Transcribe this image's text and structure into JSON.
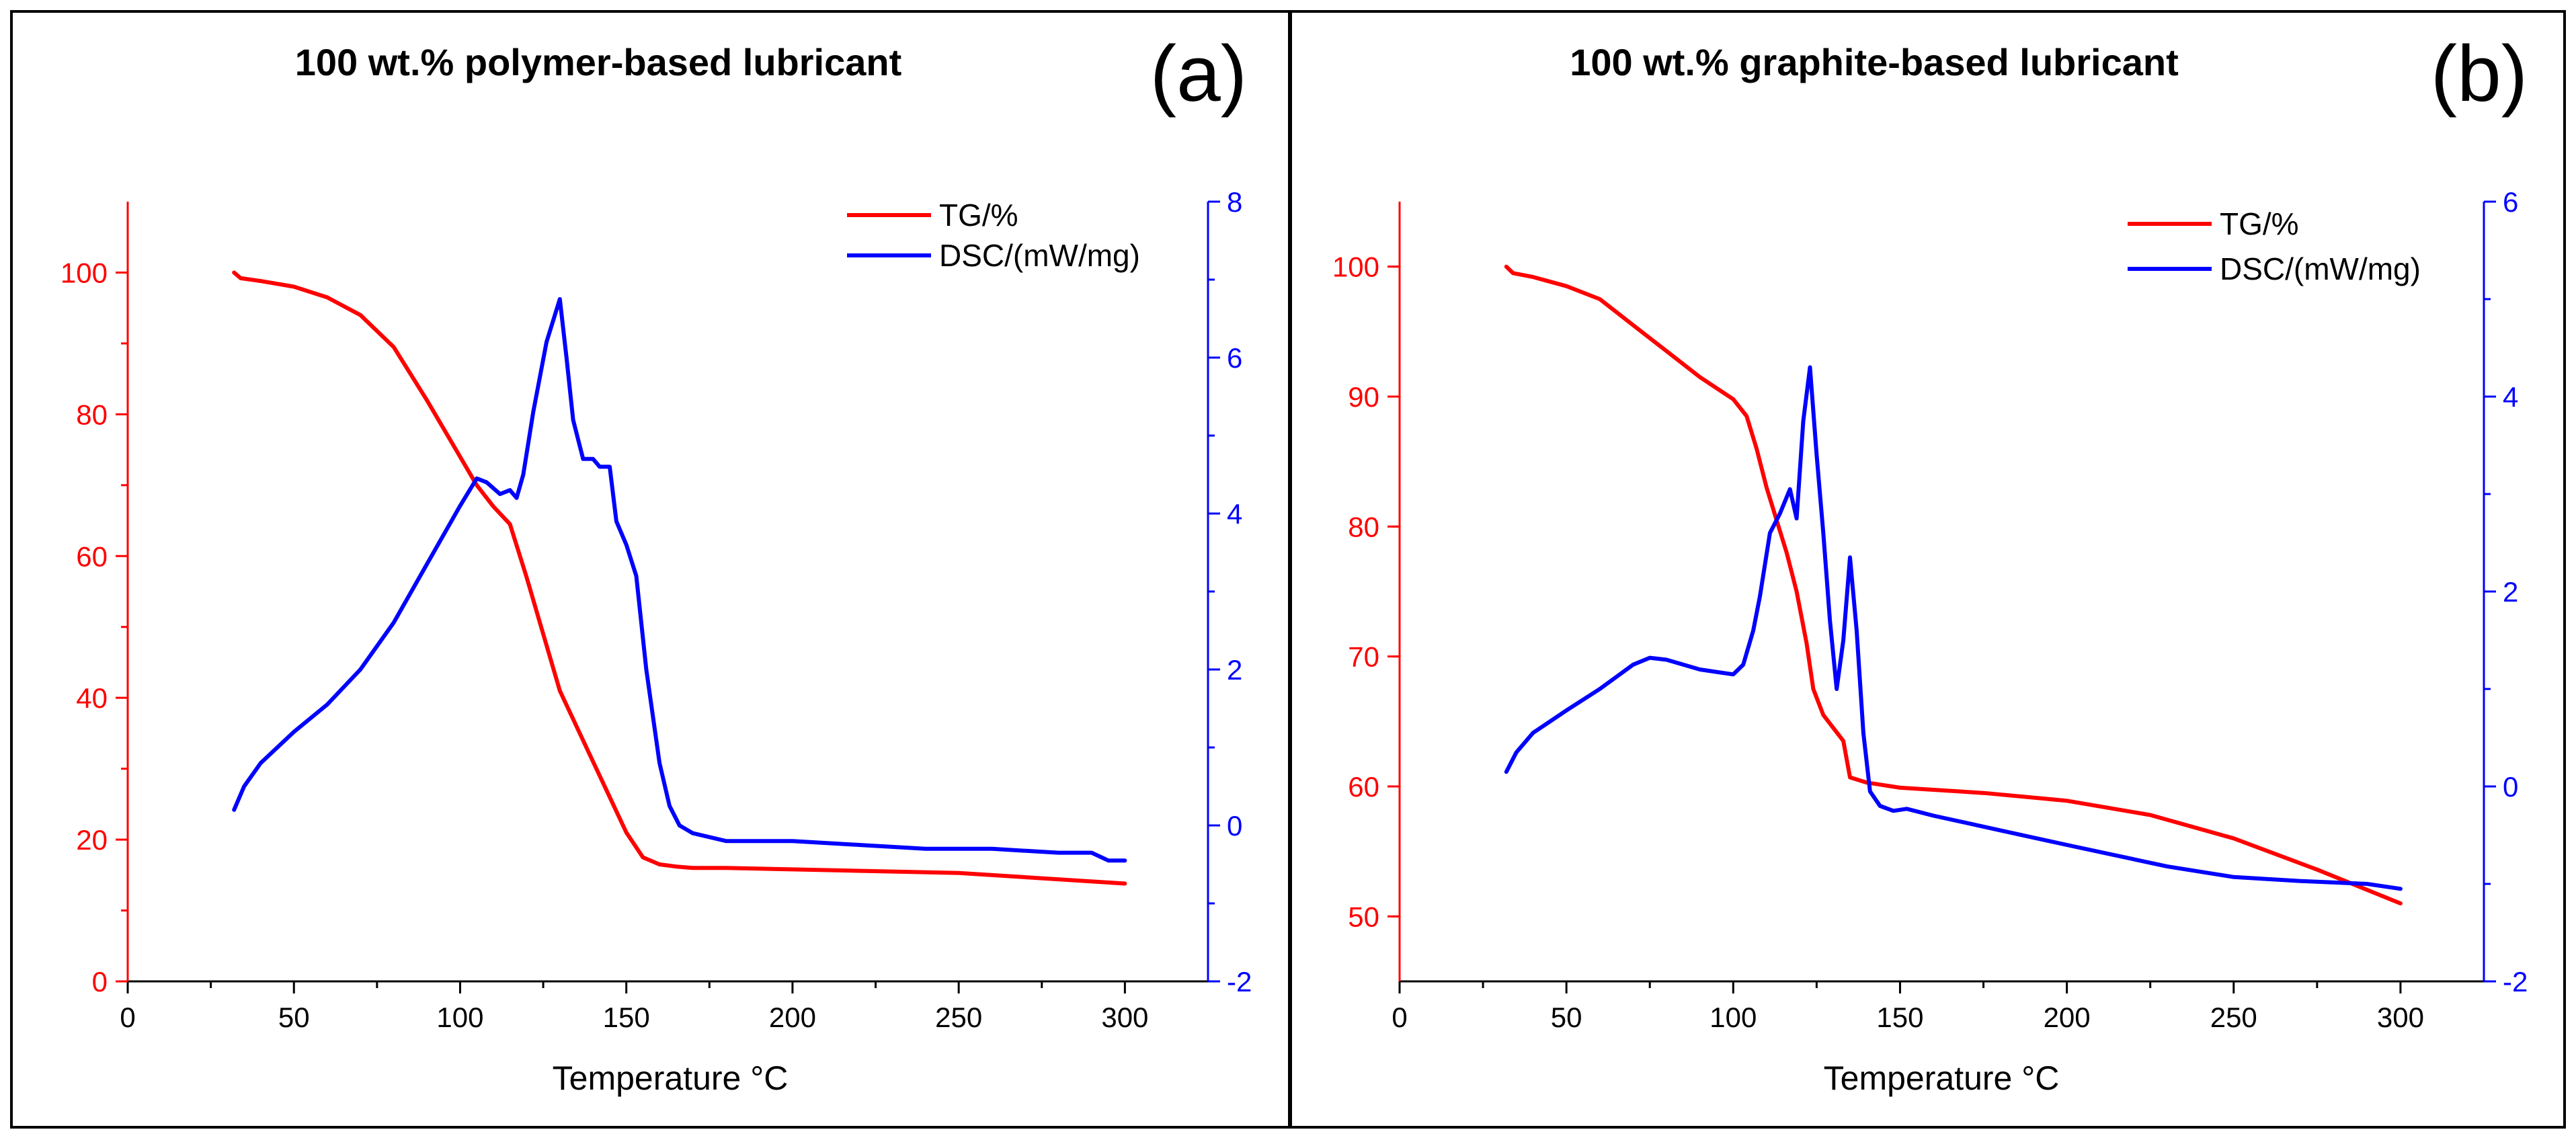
{
  "chart_data": [
    {
      "type": "line",
      "panel_label": "(a)",
      "title": "100 wt.% polymer-based lubricant",
      "xlabel": "Temperature °C",
      "ylabel_left": "",
      "ylabel_right": "",
      "xlim": [
        0,
        325
      ],
      "ylim_left": [
        0,
        110
      ],
      "ylim_right": [
        -2,
        8
      ],
      "x_ticks": [
        0,
        50,
        100,
        150,
        200,
        250,
        300
      ],
      "y_left_ticks": [
        0,
        20,
        40,
        60,
        80,
        100
      ],
      "y_right_ticks": [
        -2,
        0,
        2,
        4,
        6,
        8
      ],
      "legend_position": "top-right",
      "colors": {
        "tg": "#ff0000",
        "dsc": "#0000ff",
        "axis": "#000000"
      },
      "series": [
        {
          "name": "TG/%",
          "axis": "left",
          "color": "#ff0000",
          "x": [
            32,
            34,
            40,
            50,
            60,
            70,
            80,
            90,
            100,
            105,
            110,
            115,
            120,
            125,
            130,
            135,
            140,
            145,
            150,
            155,
            160,
            165,
            170,
            180,
            200,
            250,
            300
          ],
          "y": [
            100,
            99.2,
            98.8,
            98,
            96.5,
            94,
            89.5,
            82,
            74,
            70,
            67,
            64.5,
            57,
            49,
            41,
            36,
            31,
            26,
            21,
            17.5,
            16.5,
            16.2,
            16,
            16,
            15.8,
            15.3,
            13.8
          ]
        },
        {
          "name": "DSC/(mW/mg)",
          "axis": "right",
          "color": "#0000ff",
          "x": [
            32,
            35,
            40,
            50,
            60,
            70,
            80,
            90,
            100,
            105,
            108,
            112,
            115,
            117,
            119,
            122,
            126,
            130,
            132,
            134,
            137,
            140,
            142,
            145,
            147,
            150,
            153,
            156,
            160,
            163,
            166,
            170,
            180,
            200,
            220,
            240,
            260,
            280,
            290,
            295,
            300
          ],
          "y": [
            0.2,
            0.5,
            0.8,
            1.2,
            1.55,
            2.0,
            2.6,
            3.35,
            4.1,
            4.45,
            4.4,
            4.25,
            4.3,
            4.2,
            4.5,
            5.3,
            6.2,
            6.75,
            6.0,
            5.2,
            4.7,
            4.7,
            4.6,
            4.6,
            3.9,
            3.6,
            3.2,
            2.0,
            0.8,
            0.25,
            0.0,
            -0.1,
            -0.2,
            -0.2,
            -0.25,
            -0.3,
            -0.3,
            -0.35,
            -0.35,
            -0.45,
            -0.45
          ]
        }
      ]
    },
    {
      "type": "line",
      "panel_label": "(b)",
      "title": "100 wt.% graphite-based lubricant",
      "xlabel": "Temperature °C",
      "ylabel_left": "",
      "ylabel_right": "",
      "xlim": [
        0,
        325
      ],
      "ylim_left": [
        45,
        105
      ],
      "ylim_right": [
        -2,
        6
      ],
      "x_ticks": [
        0,
        50,
        100,
        150,
        200,
        250,
        300
      ],
      "y_left_ticks": [
        50,
        60,
        70,
        80,
        90,
        100
      ],
      "y_right_ticks": [
        -2,
        0,
        2,
        4,
        6
      ],
      "legend_position": "top-right",
      "colors": {
        "tg": "#ff0000",
        "dsc": "#0000ff",
        "axis": "#000000"
      },
      "series": [
        {
          "name": "TG/%",
          "axis": "left",
          "color": "#ff0000",
          "x": [
            32,
            34,
            40,
            50,
            60,
            70,
            80,
            90,
            100,
            104,
            107,
            110,
            113,
            116,
            119,
            122,
            124,
            127,
            130,
            133,
            135,
            140,
            150,
            175,
            200,
            225,
            250,
            275,
            300
          ],
          "y": [
            100,
            99.5,
            99.2,
            98.5,
            97.5,
            95.5,
            93.5,
            91.5,
            89.8,
            88.5,
            86,
            83,
            80.5,
            78,
            75,
            71,
            67.5,
            65.5,
            64.5,
            63.5,
            60.7,
            60.3,
            59.9,
            59.5,
            58.9,
            57.8,
            56,
            53.6,
            51
          ]
        },
        {
          "name": "DSC/(mW/mg)",
          "axis": "right",
          "color": "#0000ff",
          "x": [
            32,
            35,
            40,
            50,
            60,
            70,
            75,
            80,
            90,
            100,
            103,
            106,
            108,
            111,
            114,
            117,
            119,
            121,
            123,
            125,
            127,
            129,
            131,
            133,
            135,
            137,
            139,
            141,
            144,
            148,
            152,
            160,
            180,
            200,
            230,
            250,
            270,
            290,
            300
          ],
          "y": [
            0.15,
            0.35,
            0.55,
            0.78,
            1.0,
            1.25,
            1.32,
            1.3,
            1.2,
            1.15,
            1.25,
            1.6,
            1.95,
            2.6,
            2.8,
            3.05,
            2.75,
            3.75,
            4.3,
            3.4,
            2.6,
            1.7,
            1.0,
            1.5,
            2.35,
            1.6,
            0.55,
            -0.05,
            -0.2,
            -0.25,
            -0.23,
            -0.3,
            -0.45,
            -0.6,
            -0.82,
            -0.93,
            -0.97,
            -1.0,
            -1.05
          ]
        }
      ]
    }
  ]
}
